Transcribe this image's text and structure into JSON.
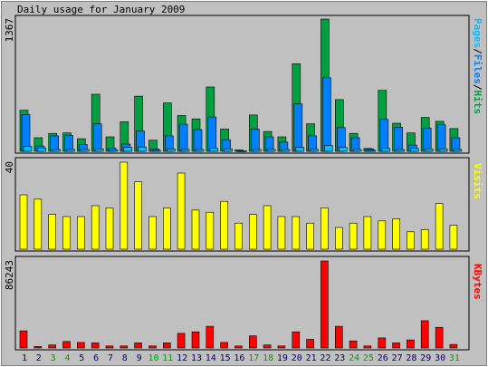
{
  "title": "Daily usage for January 2009",
  "colors": {
    "background": "#c0c0c0",
    "hits": "#00a040",
    "files": "#0080ff",
    "pages": "#00c0ff",
    "visits": "#ffff00",
    "kbytes": "#ff0000",
    "weekday_label": "#000080",
    "weekend_label": "#00a000"
  },
  "chart_data": [
    {
      "type": "bar",
      "panel": "usage",
      "y_max_label": "1367",
      "ylim": [
        0,
        1367
      ],
      "side_label_parts": [
        "Pages",
        "/",
        "Files",
        "/",
        "Hits"
      ],
      "categories": [
        "1",
        "2",
        "3",
        "4",
        "5",
        "6",
        "7",
        "8",
        "9",
        "10",
        "11",
        "12",
        "13",
        "14",
        "15",
        "16",
        "17",
        "18",
        "19",
        "20",
        "21",
        "22",
        "23",
        "24",
        "25",
        "26",
        "27",
        "28",
        "29",
        "30",
        "31"
      ],
      "series": [
        {
          "name": "Hits",
          "values": [
            425,
            140,
            185,
            190,
            130,
            590,
            150,
            305,
            570,
            115,
            500,
            370,
            335,
            665,
            230,
            15,
            375,
            205,
            150,
            905,
            285,
            1367,
            535,
            185,
            30,
            630,
            290,
            190,
            350,
            310,
            235
          ]
        },
        {
          "name": "Files",
          "values": [
            380,
            55,
            160,
            165,
            70,
            285,
            35,
            75,
            210,
            25,
            160,
            280,
            225,
            355,
            120,
            5,
            230,
            150,
            95,
            490,
            160,
            760,
            245,
            140,
            25,
            330,
            250,
            65,
            240,
            275,
            140
          ]
        },
        {
          "name": "Pages",
          "values": [
            50,
            35,
            20,
            20,
            20,
            25,
            15,
            40,
            45,
            10,
            25,
            20,
            20,
            30,
            25,
            5,
            20,
            20,
            20,
            40,
            20,
            60,
            40,
            20,
            10,
            30,
            20,
            30,
            25,
            25,
            20
          ]
        }
      ]
    },
    {
      "type": "bar",
      "panel": "visits",
      "y_max_label": "40",
      "ylim": [
        0,
        40
      ],
      "side_label": "Visits",
      "categories": [
        "1",
        "2",
        "3",
        "4",
        "5",
        "6",
        "7",
        "8",
        "9",
        "10",
        "11",
        "12",
        "13",
        "14",
        "15",
        "16",
        "17",
        "18",
        "19",
        "20",
        "21",
        "22",
        "23",
        "24",
        "25",
        "26",
        "27",
        "28",
        "29",
        "30",
        "31"
      ],
      "series": [
        {
          "name": "Visits",
          "values": [
            25,
            23,
            16,
            15,
            15,
            20,
            19,
            40,
            31,
            15,
            19,
            35,
            18,
            17,
            22,
            12,
            16,
            20,
            15,
            15,
            12,
            19,
            10,
            12,
            15,
            13,
            14,
            8,
            9,
            21,
            11
          ]
        }
      ]
    },
    {
      "type": "bar",
      "panel": "kbytes",
      "y_max_label": "86243",
      "ylim": [
        0,
        86243
      ],
      "side_label": "KBytes",
      "categories": [
        "1",
        "2",
        "3",
        "4",
        "5",
        "6",
        "7",
        "8",
        "9",
        "10",
        "11",
        "12",
        "13",
        "14",
        "15",
        "16",
        "17",
        "18",
        "19",
        "20",
        "21",
        "22",
        "23",
        "24",
        "25",
        "26",
        "27",
        "28",
        "29",
        "30",
        "31"
      ],
      "series": [
        {
          "name": "KBytes",
          "values": [
            17000,
            1500,
            3000,
            6500,
            5500,
            5000,
            2000,
            2000,
            5000,
            2000,
            5000,
            14500,
            16000,
            21500,
            5500,
            2000,
            12000,
            3000,
            2000,
            16000,
            8500,
            86243,
            21500,
            7000,
            2000,
            10000,
            5000,
            8000,
            27000,
            20500,
            3500
          ]
        }
      ]
    }
  ]
}
